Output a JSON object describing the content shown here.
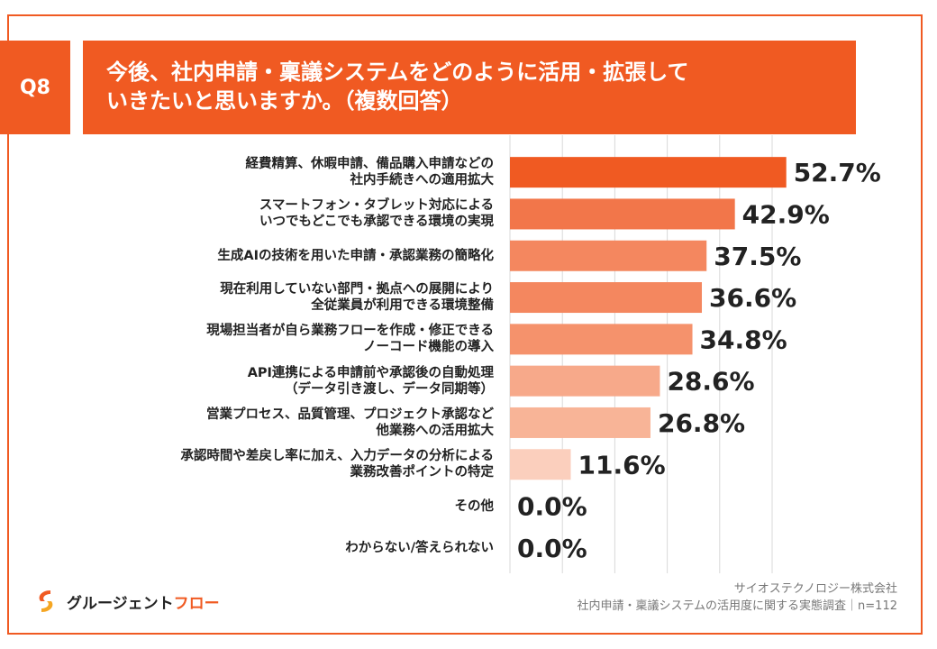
{
  "question": {
    "label": "Q8"
  },
  "title": {
    "line1": "今後、社内申請・稟議システムをどのように活用・拡張して",
    "line2": "いきたいと思いますか。（複数回答）"
  },
  "chart_data": {
    "type": "bar",
    "orientation": "horizontal",
    "title": "今後、社内申請・稟議システムをどのように活用・拡張していきたいと思いますか。（複数回答）",
    "categories": [
      [
        "経費精算、休暇申請、備品購入申請などの",
        "社内手続きへの適用拡大"
      ],
      [
        "スマートフォン・タブレット対応による",
        "いつでもどこでも承認できる環境の実現"
      ],
      [
        "生成AIの技術を用いた申請・承認業務の簡略化"
      ],
      [
        "現在利用していない部門・拠点への展開により",
        "全従業員が利用できる環境整備"
      ],
      [
        "現場担当者が自ら業務フローを作成・修正できる",
        "ノーコード機能の導入"
      ],
      [
        "API連携による申請前や承認後の自動処理",
        "（データ引き渡し、データ同期等）"
      ],
      [
        "営業プロセス、品質管理、プロジェクト承認など",
        "他業務への活用拡大"
      ],
      [
        "承認時間や差戻し率に加え、入力データの分析による",
        "業務改善ポイントの特定"
      ],
      [
        "その他"
      ],
      [
        "わからない/答えられない"
      ]
    ],
    "values": [
      52.7,
      42.9,
      37.5,
      36.6,
      34.8,
      28.6,
      26.8,
      11.6,
      0.0,
      0.0
    ],
    "value_labels": [
      "52.7%",
      "42.9%",
      "37.5%",
      "36.6%",
      "34.8%",
      "28.6%",
      "26.8%",
      "11.6%",
      "0.0%",
      "0.0%"
    ],
    "xlim": [
      0,
      50
    ],
    "grid": true,
    "bar_colors": [
      "#f05a22",
      "#f2764a",
      "#f4875f",
      "#f4875f",
      "#f5926c",
      "#f7a98a",
      "#f8b497",
      "#fbcfbd",
      "#f05a22",
      "#f05a22"
    ]
  },
  "footer": {
    "company": "サイオステクノロジー株式会社",
    "survey": "社内申請・稟議システムの活用度に関する実態調査｜n=112"
  },
  "logo": {
    "name_main": "グルージェント",
    "name_accent": "フロー",
    "accent_color": "#f05a22"
  }
}
